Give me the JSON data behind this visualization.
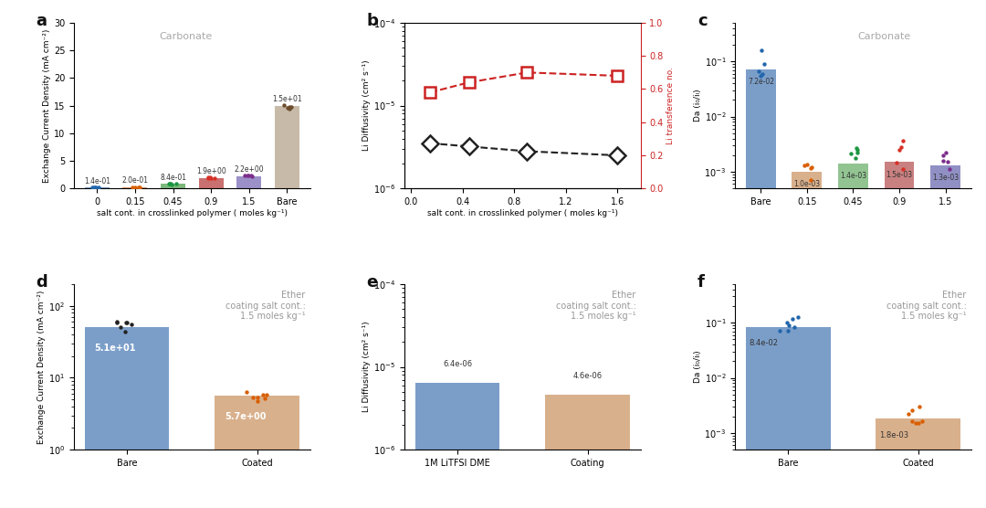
{
  "panel_a": {
    "categories": [
      "0",
      "0.15",
      "0.45",
      "0.9",
      "1.5",
      "Bare"
    ],
    "values": [
      0.14,
      0.2,
      0.84,
      1.9,
      2.2,
      15.0
    ],
    "errors": [
      0.05,
      0.05,
      0.12,
      0.25,
      0.25,
      0.6
    ],
    "labels": [
      "1.4e-01",
      "2.0e-01",
      "8.4e-01",
      "1.9e+00",
      "2.2e+00",
      "1.5e+01"
    ],
    "bar_colors": [
      "#7b9ec9",
      "#d9956b",
      "#7db87d",
      "#c97070",
      "#9b90c7",
      "#c8baa8"
    ],
    "scatter_colors": [
      "#2166ac",
      "#d95f02",
      "#1a9641",
      "#d73027",
      "#7b2d8b",
      "#6b4c2a"
    ],
    "ylabel": "Exchange Current Density (mA cm⁻²)",
    "xlabel": "salt cont. in crosslinked polymer ( moles kg⁻¹)",
    "title": "Carbonate",
    "ylim": [
      0,
      30
    ]
  },
  "panel_b": {
    "x": [
      0.15,
      0.45,
      0.9,
      1.6
    ],
    "diffusivity": [
      3.5e-06,
      3.2e-06,
      2.8e-06,
      2.5e-06
    ],
    "transference": [
      0.58,
      0.64,
      0.7,
      0.68
    ],
    "ylabel_left": "Li Diffusivity (cm² s⁻¹)",
    "ylabel_right": "Li transference no.",
    "xlabel": "salt cont. in crosslinked polymer ( moles kg⁻¹)",
    "ylim_left": [
      1e-06,
      0.0001
    ],
    "ylim_right": [
      0.0,
      1.0
    ],
    "diffusivity_color": "#222222",
    "transference_color": "#cc2222"
  },
  "panel_c": {
    "categories": [
      "Bare",
      "0.15",
      "0.45",
      "0.9",
      "1.5"
    ],
    "values": [
      0.072,
      0.001,
      0.0014,
      0.0015,
      0.0013
    ],
    "errors_up": [
      0.008,
      0.0003,
      0.0006,
      0.0003,
      0.0002
    ],
    "errors_dn": [
      0.005,
      0.0002,
      0.0002,
      0.0002,
      0.0002
    ],
    "labels": [
      "7.2e-02",
      "1.0e-03",
      "1.4e-03",
      "1.5e-03",
      "1.3e-03"
    ],
    "bar_colors": [
      "#7b9ec9",
      "#d9b08c",
      "#92c492",
      "#c98080",
      "#9090c4"
    ],
    "scatter_colors": [
      "#2166ac",
      "#d95f02",
      "#1a9641",
      "#d73027",
      "#7b2d8b"
    ],
    "ylabel": "Da (i₀/iₗ)",
    "title": "Carbonate",
    "ylim": [
      0.0005,
      0.5
    ]
  },
  "panel_d": {
    "categories": [
      "Bare",
      "Coated"
    ],
    "values": [
      51.0,
      5.7
    ],
    "errors": [
      8.0,
      1.0
    ],
    "labels": [
      "5.1e+01",
      "5.7e+00"
    ],
    "bar_colors": [
      "#7b9ec9",
      "#d9b08c"
    ],
    "scatter_colors": [
      "#222222",
      "#d95f02"
    ],
    "ylabel": "Exchange Current Density (mA cm⁻²)",
    "title": "Ether\ncoating salt cont.:\n1.5 moles kg⁻¹",
    "ylim_log": [
      1,
      200
    ]
  },
  "panel_e": {
    "categories": [
      "1M LiTFSI DME",
      "Coating"
    ],
    "values": [
      6.4e-06,
      4.6e-06
    ],
    "labels": [
      "6.4e-06",
      "4.6e-06"
    ],
    "bar_colors": [
      "#7b9ec9",
      "#d9b08c"
    ],
    "ylabel": "Li Diffusivity (cm² s⁻¹)",
    "title": "Ether\ncoating salt cont.:\n1.5 moles kg⁻¹",
    "ylim": [
      1e-06,
      0.0001
    ]
  },
  "panel_f": {
    "categories": [
      "Bare",
      "Coated"
    ],
    "values": [
      0.084,
      0.0018
    ],
    "errors": [
      0.015,
      0.0004
    ],
    "labels": [
      "8.4e-02",
      "1.8e-03"
    ],
    "bar_colors": [
      "#7b9ec9",
      "#d9b08c"
    ],
    "scatter_colors": [
      "#2166ac",
      "#d95f02"
    ],
    "ylabel": "Da (i₀/iₗ)",
    "title": "Ether\ncoating salt cont.:\n1.5 moles kg⁻¹",
    "ylim": [
      0.0005,
      0.5
    ]
  },
  "panel_labels": [
    "a",
    "b",
    "c",
    "d",
    "e",
    "f"
  ],
  "background_color": "#ffffff"
}
